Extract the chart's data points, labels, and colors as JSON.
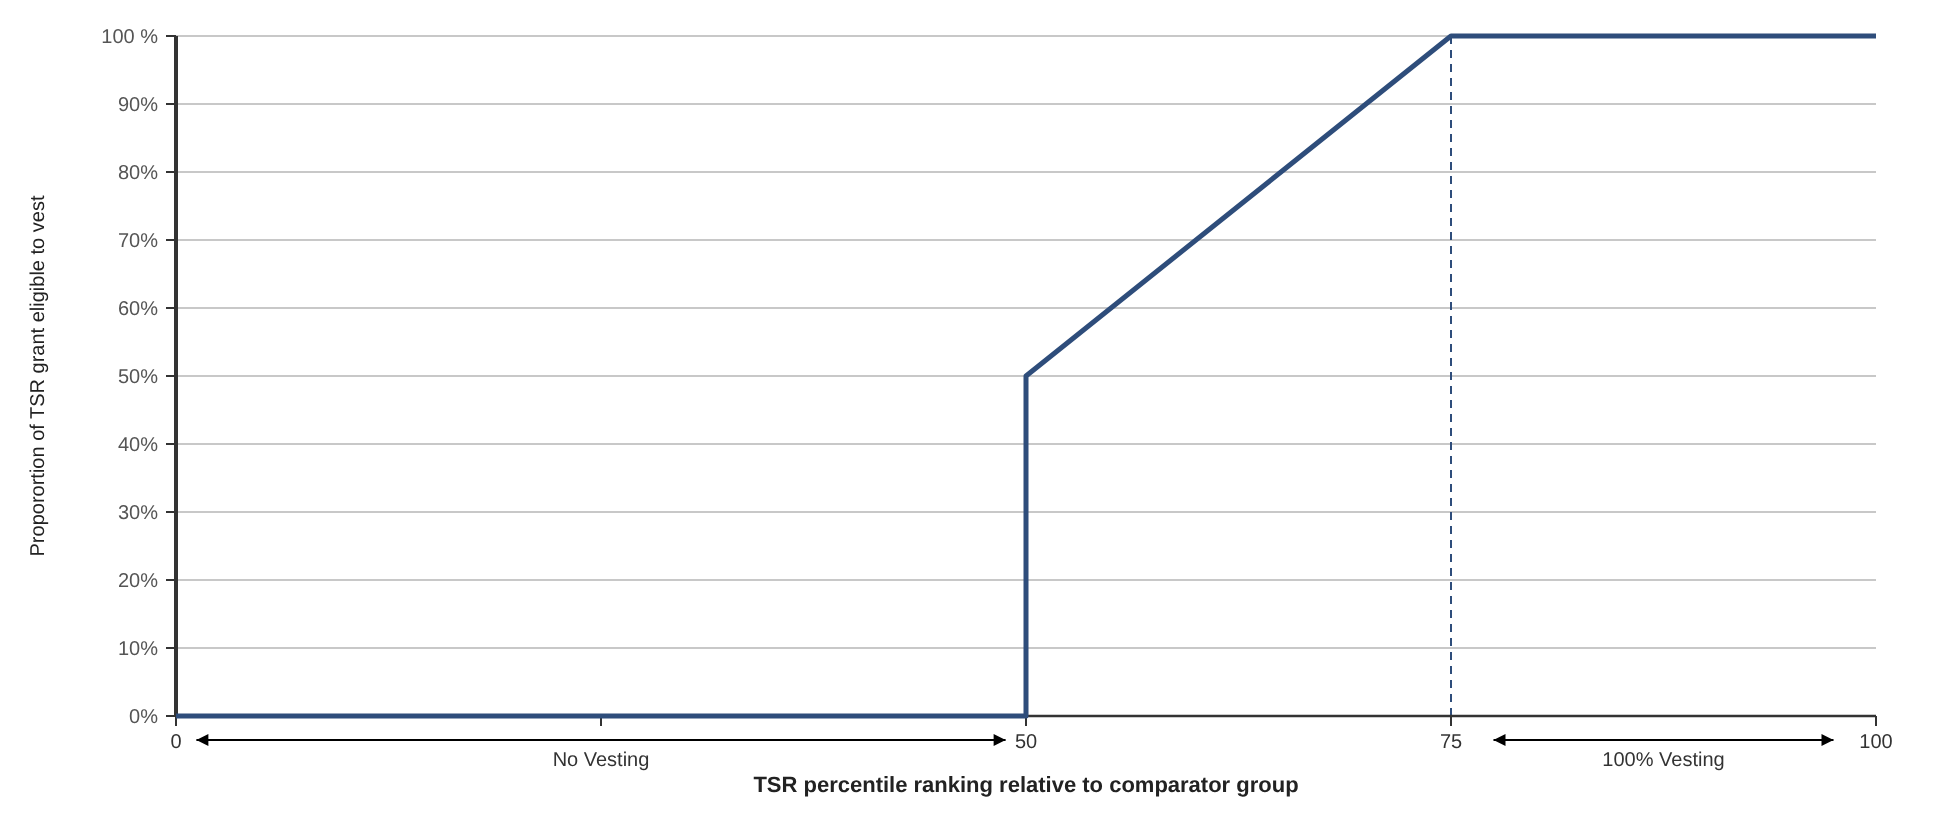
{
  "chart_data": {
    "type": "line",
    "xlabel": "TSR percentile ranking relative to comparator group",
    "ylabel": "Proporortion of TSR grant eligible to vest",
    "series": [
      {
        "color": "#2e4d7b",
        "x": [
          0,
          50,
          50,
          75,
          100
        ],
        "values": [
          0,
          0,
          50,
          100,
          100
        ]
      }
    ],
    "xlim": [
      0,
      100
    ],
    "xticks": [
      0,
      {
        "value": 25,
        "label": null
      },
      50,
      75,
      100
    ],
    "ylim": [
      0,
      100
    ],
    "yticks": [
      {
        "value": 0,
        "label": "0%"
      },
      {
        "value": 10,
        "label": "10%"
      },
      {
        "value": 20,
        "label": "20%"
      },
      {
        "value": 30,
        "label": "30%"
      },
      {
        "value": 40,
        "label": "40%"
      },
      {
        "value": 50,
        "label": "50%"
      },
      {
        "value": 60,
        "label": "60%"
      },
      {
        "value": 70,
        "label": "70%"
      },
      {
        "value": 80,
        "label": "80%"
      },
      {
        "value": 90,
        "label": "90%"
      },
      {
        "value": 100,
        "label": "100 %"
      }
    ],
    "grid": "y",
    "line_style": "solid",
    "ref_lines": [
      {
        "axis": "x",
        "value": 75,
        "color": "#2e4d7b",
        "line_style": "dashed"
      }
    ],
    "annotations": [
      "No Vesting",
      "100% Vesting"
    ]
  }
}
